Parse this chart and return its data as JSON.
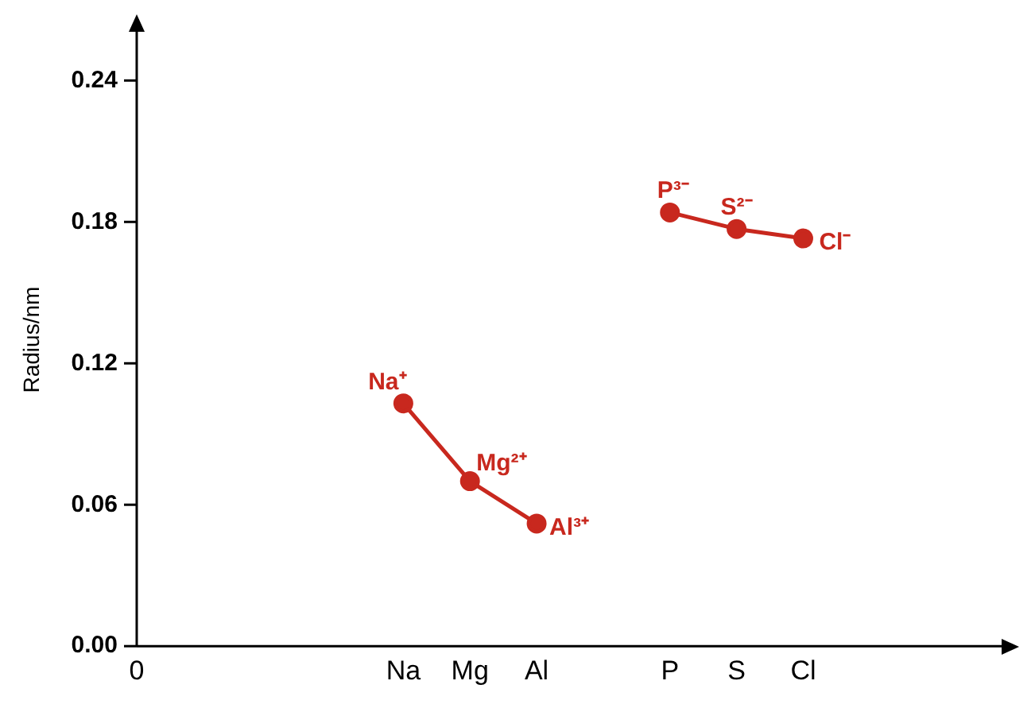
{
  "chart_data": {
    "type": "line",
    "ylabel": "Radius/nm",
    "categories": [
      "0",
      null,
      null,
      null,
      "Na",
      "Mg",
      "Al",
      null,
      "P",
      "S",
      "Cl",
      null,
      null,
      null
    ],
    "ylim": [
      0,
      0.26
    ],
    "yticks": [
      {
        "value": 0,
        "label": "0.00"
      },
      {
        "value": 0.06,
        "label": "0.06"
      },
      {
        "value": 0.12,
        "label": "0.12"
      },
      {
        "value": 0.18,
        "label": "0.18"
      },
      {
        "value": 0.24,
        "label": "0.24"
      }
    ],
    "series": [
      {
        "color": "#c8281e",
        "values": [
          null,
          null,
          null,
          null,
          0.103,
          0.07,
          0.052,
          null,
          null,
          null,
          null,
          null,
          null,
          null
        ]
      },
      {
        "color": "#c8281e",
        "values": [
          null,
          null,
          null,
          null,
          null,
          null,
          null,
          null,
          0.184,
          0.177,
          0.173,
          null,
          null,
          null
        ]
      }
    ],
    "marker": "circle",
    "line_style": "solid",
    "grid": false,
    "legend": false,
    "annotations": [
      {
        "text": "Na⁺",
        "x": "Na",
        "y": 0.103
      },
      {
        "text": "Mg²⁺",
        "x": "Mg",
        "y": 0.07
      },
      {
        "text": "Al³⁺",
        "x": "Al",
        "y": 0.052
      },
      {
        "text": "P³⁻",
        "x": "P",
        "y": 0.184
      },
      {
        "text": "S²⁻",
        "x": "S",
        "y": 0.177
      },
      {
        "text": "Cl⁻",
        "x": "Cl",
        "y": 0.173
      }
    ]
  }
}
